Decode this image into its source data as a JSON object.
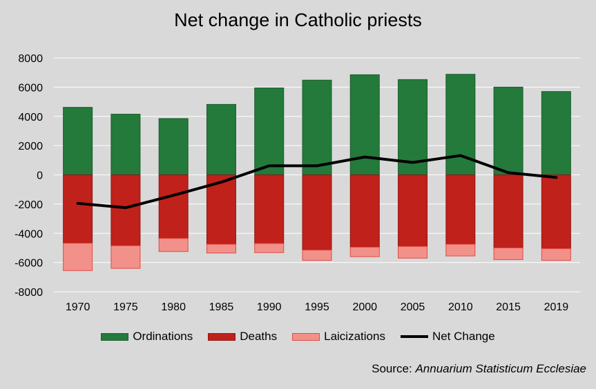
{
  "chart_data": {
    "type": "bar",
    "title": "Net change in Catholic priests",
    "categories": [
      "1970",
      "1975",
      "1980",
      "1985",
      "1990",
      "1995",
      "2000",
      "2005",
      "2010",
      "2015",
      "2019"
    ],
    "series": [
      {
        "name": "Ordinations",
        "kind": "bar-positive",
        "color": "#237a3b",
        "values": [
          4620,
          4150,
          3850,
          4820,
          5950,
          6480,
          6850,
          6520,
          6880,
          6000,
          5700
        ]
      },
      {
        "name": "Deaths",
        "kind": "bar-negative",
        "color": "#c0211a",
        "values": [
          -4680,
          -4850,
          -4350,
          -4750,
          -4700,
          -5150,
          -4950,
          -4900,
          -4750,
          -5000,
          -5050
        ]
      },
      {
        "name": "Laicizations",
        "kind": "bar-negative-stacked",
        "color": "#f2918a",
        "values": [
          -1870,
          -1550,
          -900,
          -600,
          -620,
          -700,
          -650,
          -800,
          -800,
          -800,
          -800
        ]
      },
      {
        "name": "Net Change",
        "kind": "line",
        "color": "#000000",
        "values": [
          -1950,
          -2250,
          -1400,
          -500,
          620,
          620,
          1220,
          850,
          1320,
          150,
          -180
        ]
      }
    ],
    "ylim": [
      -8000,
      8000
    ],
    "yticks": [
      "8000",
      "6000",
      "4000",
      "2000",
      "0",
      "-2000",
      "-4000",
      "-6000",
      "-8000"
    ],
    "xlabel": "",
    "ylabel": "",
    "grid": true,
    "legend_position": "bottom"
  },
  "source": {
    "prefix": "Source: ",
    "name": "Annuarium Statisticum Ecclesiae"
  }
}
